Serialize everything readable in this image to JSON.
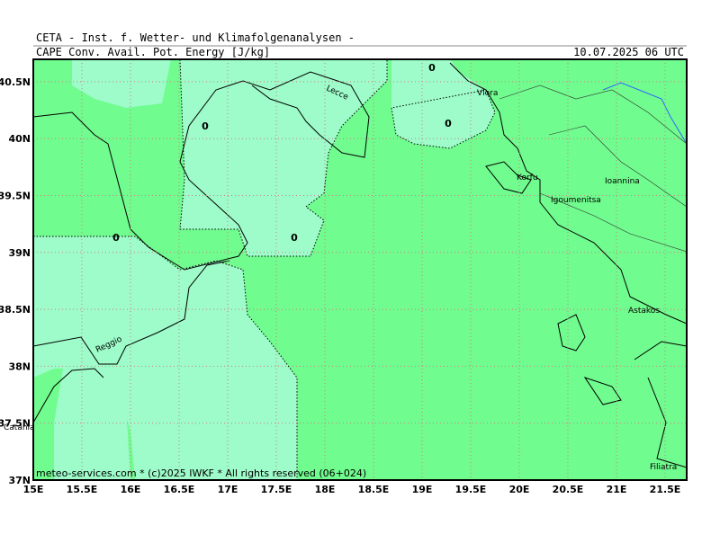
{
  "header": {
    "line1": "CETA - Inst. f. Wetter- und Klimafolgenanalysen -",
    "parameter": "CAPE  Conv. Avail. Pot. Energy [J/kg]",
    "datetime": "10.07.2025 06 UTC"
  },
  "footer": "meteo-services.com * (c)2025 IWKF * All rights reserved (06+024)",
  "lon_ticks": [
    {
      "value": 15,
      "label": "15E"
    },
    {
      "value": 15.5,
      "label": "15.5E"
    },
    {
      "value": 16,
      "label": "16E"
    },
    {
      "value": 16.5,
      "label": "16.5E"
    },
    {
      "value": 17,
      "label": "17E"
    },
    {
      "value": 17.5,
      "label": "17.5E"
    },
    {
      "value": 18,
      "label": "18E"
    },
    {
      "value": 18.5,
      "label": "18.5E"
    },
    {
      "value": 19,
      "label": "19E"
    },
    {
      "value": 19.5,
      "label": "19.5E"
    },
    {
      "value": 20,
      "label": "20E"
    },
    {
      "value": 20.5,
      "label": "20.5E"
    },
    {
      "value": 21,
      "label": "21E"
    },
    {
      "value": 21.5,
      "label": "21.5E"
    }
  ],
  "lat_ticks": [
    {
      "value": 40.5,
      "label": "40.5N"
    },
    {
      "value": 40,
      "label": "40N"
    },
    {
      "value": 39.5,
      "label": "39.5N"
    },
    {
      "value": 39,
      "label": "39N"
    },
    {
      "value": 38.5,
      "label": "38.5N"
    },
    {
      "value": 38,
      "label": "38N"
    },
    {
      "value": 37.5,
      "label": "37.5N"
    },
    {
      "value": 37,
      "label": "37N"
    }
  ],
  "places": [
    "Lecce",
    "Vlora",
    "Korfu",
    "Ioannina",
    "Igoumenitsa",
    "Astakos",
    "Reggio",
    "Catania",
    "Filiatra"
  ],
  "contour_labels": [
    "0",
    "0",
    "0",
    "0",
    "0"
  ]
}
